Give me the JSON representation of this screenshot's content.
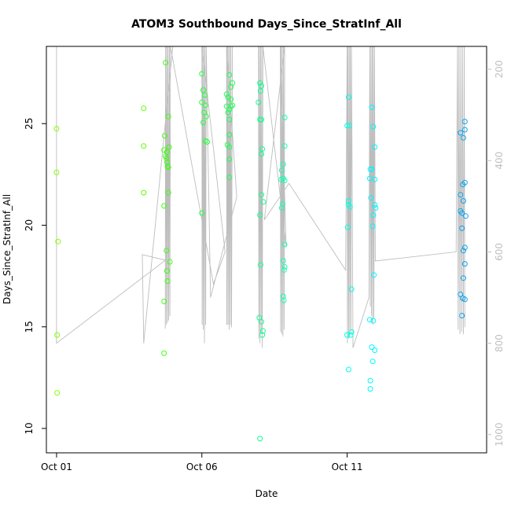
{
  "chart_data": {
    "type": "scatter",
    "title": "ATOM3 Southbound Days_Since_StratInf_All",
    "xlabel": "Date",
    "ylabel": "Days_Since_StratInf_All",
    "xlim": [
      -0.35,
      14.8
    ],
    "ylim": [
      8.8,
      28.8
    ],
    "y_ticks": [
      10,
      15,
      20,
      25
    ],
    "x_ticks": [
      {
        "value": 0,
        "label": "Oct 01"
      },
      {
        "value": 5,
        "label": "Oct 06"
      },
      {
        "value": 10,
        "label": "Oct 11"
      }
    ],
    "right_axis": {
      "ylim": [
        1040,
        150
      ],
      "ticks": [
        200,
        400,
        600,
        800,
        1000
      ],
      "color": "#bfbfbf"
    },
    "grid": false,
    "points": [
      {
        "x": 0.0,
        "y": 24.75,
        "color": "#7fff00"
      },
      {
        "x": 0.0,
        "y": 22.6,
        "color": "#7fff00"
      },
      {
        "x": 0.05,
        "y": 19.2,
        "color": "#7fff00"
      },
      {
        "x": 0.02,
        "y": 14.6,
        "color": "#7fff00"
      },
      {
        "x": 0.02,
        "y": 11.75,
        "color": "#7fff00"
      },
      {
        "x": 3.0,
        "y": 25.75,
        "color": "#5cff00"
      },
      {
        "x": 3.0,
        "y": 23.9,
        "color": "#5cff00"
      },
      {
        "x": 3.0,
        "y": 21.6,
        "color": "#5cff00"
      },
      {
        "x": 3.75,
        "y": 28.0,
        "color": "#3dff10"
      },
      {
        "x": 3.7,
        "y": 23.7,
        "color": "#3dff10"
      },
      {
        "x": 3.72,
        "y": 24.4,
        "color": "#3dff10"
      },
      {
        "x": 3.75,
        "y": 23.4,
        "color": "#3dff10"
      },
      {
        "x": 3.78,
        "y": 23.3,
        "color": "#3dff10"
      },
      {
        "x": 3.8,
        "y": 23.1,
        "color": "#3dff10"
      },
      {
        "x": 3.82,
        "y": 22.9,
        "color": "#3dff10"
      },
      {
        "x": 3.85,
        "y": 22.85,
        "color": "#3dff10"
      },
      {
        "x": 3.8,
        "y": 23.6,
        "color": "#3dff10"
      },
      {
        "x": 3.85,
        "y": 25.35,
        "color": "#3dff10"
      },
      {
        "x": 3.87,
        "y": 23.85,
        "color": "#3dff10"
      },
      {
        "x": 3.7,
        "y": 20.95,
        "color": "#3dff10"
      },
      {
        "x": 3.85,
        "y": 21.6,
        "color": "#3dff10"
      },
      {
        "x": 3.78,
        "y": 18.75,
        "color": "#3dff10"
      },
      {
        "x": 3.9,
        "y": 18.2,
        "color": "#3dff10"
      },
      {
        "x": 3.8,
        "y": 17.75,
        "color": "#3dff10"
      },
      {
        "x": 3.82,
        "y": 17.25,
        "color": "#3dff10"
      },
      {
        "x": 3.7,
        "y": 16.25,
        "color": "#3dff10"
      },
      {
        "x": 3.7,
        "y": 13.7,
        "color": "#3dff10"
      },
      {
        "x": 5.0,
        "y": 27.45,
        "color": "#25ff3a"
      },
      {
        "x": 5.05,
        "y": 26.65,
        "color": "#25ff3a"
      },
      {
        "x": 5.1,
        "y": 26.4,
        "color": "#25ff3a"
      },
      {
        "x": 5.0,
        "y": 26.05,
        "color": "#25ff3a"
      },
      {
        "x": 5.12,
        "y": 25.9,
        "color": "#25ff3a"
      },
      {
        "x": 5.08,
        "y": 25.55,
        "color": "#25ff3a"
      },
      {
        "x": 5.15,
        "y": 25.35,
        "color": "#25ff3a"
      },
      {
        "x": 5.05,
        "y": 25.05,
        "color": "#25ff3a"
      },
      {
        "x": 5.12,
        "y": 24.15,
        "color": "#25ff3a"
      },
      {
        "x": 5.18,
        "y": 24.1,
        "color": "#25ff3a"
      },
      {
        "x": 5.0,
        "y": 20.6,
        "color": "#25ff3a"
      },
      {
        "x": 5.95,
        "y": 27.4,
        "color": "#20ff55"
      },
      {
        "x": 6.0,
        "y": 26.8,
        "color": "#20ff55"
      },
      {
        "x": 6.05,
        "y": 27.0,
        "color": "#20ff55"
      },
      {
        "x": 5.85,
        "y": 26.45,
        "color": "#20ff55"
      },
      {
        "x": 5.9,
        "y": 26.3,
        "color": "#20ff55"
      },
      {
        "x": 6.0,
        "y": 26.2,
        "color": "#20ff55"
      },
      {
        "x": 5.85,
        "y": 25.85,
        "color": "#20ff55"
      },
      {
        "x": 6.0,
        "y": 25.85,
        "color": "#20ff55"
      },
      {
        "x": 5.95,
        "y": 25.7,
        "color": "#20ff55"
      },
      {
        "x": 6.05,
        "y": 25.9,
        "color": "#20ff55"
      },
      {
        "x": 5.9,
        "y": 25.55,
        "color": "#20ff55"
      },
      {
        "x": 5.95,
        "y": 25.2,
        "color": "#20ff55"
      },
      {
        "x": 5.95,
        "y": 24.45,
        "color": "#20ff55"
      },
      {
        "x": 5.88,
        "y": 23.95,
        "color": "#20ff55"
      },
      {
        "x": 5.95,
        "y": 23.85,
        "color": "#20ff55"
      },
      {
        "x": 5.95,
        "y": 23.25,
        "color": "#20ff55"
      },
      {
        "x": 5.95,
        "y": 22.35,
        "color": "#20ff55"
      },
      {
        "x": 7.0,
        "y": 27.0,
        "color": "#10ff90"
      },
      {
        "x": 7.05,
        "y": 26.85,
        "color": "#10ff90"
      },
      {
        "x": 7.02,
        "y": 26.6,
        "color": "#10ff90"
      },
      {
        "x": 6.95,
        "y": 26.05,
        "color": "#10ff90"
      },
      {
        "x": 7.0,
        "y": 25.2,
        "color": "#10ff90"
      },
      {
        "x": 7.05,
        "y": 25.2,
        "color": "#10ff90"
      },
      {
        "x": 7.08,
        "y": 23.75,
        "color": "#10ff90"
      },
      {
        "x": 7.05,
        "y": 23.5,
        "color": "#10ff90"
      },
      {
        "x": 7.05,
        "y": 21.5,
        "color": "#10ff90"
      },
      {
        "x": 7.12,
        "y": 21.15,
        "color": "#10ff90"
      },
      {
        "x": 7.0,
        "y": 20.5,
        "color": "#10ff90"
      },
      {
        "x": 7.02,
        "y": 18.05,
        "color": "#10ff90"
      },
      {
        "x": 6.98,
        "y": 15.45,
        "color": "#10ff90"
      },
      {
        "x": 7.05,
        "y": 15.25,
        "color": "#10ff90"
      },
      {
        "x": 7.1,
        "y": 14.8,
        "color": "#10ff90"
      },
      {
        "x": 7.08,
        "y": 14.6,
        "color": "#10ff90"
      },
      {
        "x": 7.0,
        "y": 9.5,
        "color": "#10ff90"
      },
      {
        "x": 7.85,
        "y": 25.3,
        "color": "#15ffb0"
      },
      {
        "x": 7.85,
        "y": 23.9,
        "color": "#15ffb0"
      },
      {
        "x": 7.8,
        "y": 23.0,
        "color": "#15ffb0"
      },
      {
        "x": 7.75,
        "y": 22.7,
        "color": "#15ffb0"
      },
      {
        "x": 7.8,
        "y": 22.3,
        "color": "#15ffb0"
      },
      {
        "x": 7.73,
        "y": 22.25,
        "color": "#15ffb0"
      },
      {
        "x": 7.85,
        "y": 22.2,
        "color": "#15ffb0"
      },
      {
        "x": 7.78,
        "y": 21.05,
        "color": "#15ffb0"
      },
      {
        "x": 7.75,
        "y": 20.85,
        "color": "#15ffb0"
      },
      {
        "x": 7.85,
        "y": 19.05,
        "color": "#15ffb0"
      },
      {
        "x": 7.8,
        "y": 18.25,
        "color": "#15ffb0"
      },
      {
        "x": 7.85,
        "y": 17.95,
        "color": "#15ffb0"
      },
      {
        "x": 7.83,
        "y": 17.8,
        "color": "#15ffb0"
      },
      {
        "x": 7.8,
        "y": 16.5,
        "color": "#15ffb0"
      },
      {
        "x": 7.82,
        "y": 16.3,
        "color": "#15ffb0"
      },
      {
        "x": 10.05,
        "y": 26.3,
        "color": "#00ffe6"
      },
      {
        "x": 10.0,
        "y": 24.9,
        "color": "#00ffe6"
      },
      {
        "x": 10.08,
        "y": 24.9,
        "color": "#00ffe6"
      },
      {
        "x": 10.05,
        "y": 21.2,
        "color": "#00ffe6"
      },
      {
        "x": 10.05,
        "y": 21.0,
        "color": "#00ffe6"
      },
      {
        "x": 10.1,
        "y": 20.9,
        "color": "#00ffe6"
      },
      {
        "x": 10.02,
        "y": 19.9,
        "color": "#00ffe6"
      },
      {
        "x": 10.15,
        "y": 16.85,
        "color": "#00ffe6"
      },
      {
        "x": 10.0,
        "y": 14.6,
        "color": "#00ffe6"
      },
      {
        "x": 10.12,
        "y": 14.6,
        "color": "#00ffe6"
      },
      {
        "x": 10.15,
        "y": 14.75,
        "color": "#00ffe6"
      },
      {
        "x": 10.05,
        "y": 12.9,
        "color": "#00ffe6"
      },
      {
        "x": 10.85,
        "y": 25.8,
        "color": "#00f6ff"
      },
      {
        "x": 10.9,
        "y": 24.85,
        "color": "#00f6ff"
      },
      {
        "x": 10.95,
        "y": 23.85,
        "color": "#00f6ff"
      },
      {
        "x": 10.8,
        "y": 22.75,
        "color": "#00f6ff"
      },
      {
        "x": 10.85,
        "y": 22.75,
        "color": "#00f6ff"
      },
      {
        "x": 10.78,
        "y": 22.3,
        "color": "#00f6ff"
      },
      {
        "x": 10.95,
        "y": 22.25,
        "color": "#00f6ff"
      },
      {
        "x": 10.82,
        "y": 21.35,
        "color": "#00f6ff"
      },
      {
        "x": 10.95,
        "y": 21.0,
        "color": "#00f6ff"
      },
      {
        "x": 10.98,
        "y": 20.85,
        "color": "#00f6ff"
      },
      {
        "x": 10.9,
        "y": 20.5,
        "color": "#00f6ff"
      },
      {
        "x": 10.88,
        "y": 19.95,
        "color": "#00f6ff"
      },
      {
        "x": 10.92,
        "y": 17.55,
        "color": "#00f6ff"
      },
      {
        "x": 10.78,
        "y": 15.35,
        "color": "#00f6ff"
      },
      {
        "x": 10.9,
        "y": 15.3,
        "color": "#00f6ff"
      },
      {
        "x": 10.85,
        "y": 14.0,
        "color": "#00f6ff"
      },
      {
        "x": 10.95,
        "y": 13.85,
        "color": "#00f6ff"
      },
      {
        "x": 10.88,
        "y": 13.3,
        "color": "#00f6ff"
      },
      {
        "x": 10.8,
        "y": 12.35,
        "color": "#00f6ff"
      },
      {
        "x": 10.8,
        "y": 11.95,
        "color": "#00f6ff"
      },
      {
        "x": 14.05,
        "y": 25.1,
        "color": "#0aa5ee"
      },
      {
        "x": 14.05,
        "y": 24.7,
        "color": "#0aa5ee"
      },
      {
        "x": 13.9,
        "y": 24.55,
        "color": "#0aa5ee"
      },
      {
        "x": 14.0,
        "y": 24.3,
        "color": "#0aa5ee"
      },
      {
        "x": 14.05,
        "y": 22.1,
        "color": "#0aa5ee"
      },
      {
        "x": 13.98,
        "y": 22.0,
        "color": "#0aa5ee"
      },
      {
        "x": 13.9,
        "y": 21.5,
        "color": "#0aa5ee"
      },
      {
        "x": 14.0,
        "y": 21.2,
        "color": "#0aa5ee"
      },
      {
        "x": 13.9,
        "y": 20.7,
        "color": "#0aa5ee"
      },
      {
        "x": 13.95,
        "y": 20.6,
        "color": "#0aa5ee"
      },
      {
        "x": 14.08,
        "y": 20.45,
        "color": "#0aa5ee"
      },
      {
        "x": 13.95,
        "y": 19.85,
        "color": "#0aa5ee"
      },
      {
        "x": 14.05,
        "y": 18.9,
        "color": "#0aa5ee"
      },
      {
        "x": 14.0,
        "y": 18.75,
        "color": "#0aa5ee"
      },
      {
        "x": 14.05,
        "y": 18.1,
        "color": "#0aa5ee"
      },
      {
        "x": 14.0,
        "y": 17.4,
        "color": "#0aa5ee"
      },
      {
        "x": 13.9,
        "y": 16.6,
        "color": "#0aa5ee"
      },
      {
        "x": 13.98,
        "y": 16.4,
        "color": "#0aa5ee"
      },
      {
        "x": 14.05,
        "y": 16.35,
        "color": "#0aa5ee"
      },
      {
        "x": 13.95,
        "y": 15.55,
        "color": "#0aa5ee"
      }
    ],
    "pressure_series": {
      "axis": "right",
      "color": "#bdbdbd",
      "points": [
        [
          0.0,
          150
        ],
        [
          0.0,
          800
        ],
        [
          3.75,
          618
        ],
        [
          2.95,
          606
        ],
        [
          3.0,
          800
        ],
        [
          4.0,
          150
        ],
        [
          4.5,
          150
        ],
        [
          3.75,
          150
        ],
        [
          3.74,
          768
        ],
        [
          3.76,
          150
        ],
        [
          3.78,
          760
        ],
        [
          3.8,
          150
        ],
        [
          3.82,
          755
        ],
        [
          3.84,
          150
        ],
        [
          3.86,
          750
        ],
        [
          3.88,
          150
        ],
        [
          3.9,
          740
        ],
        [
          3.92,
          150
        ],
        [
          5.4,
          670
        ],
        [
          5.8,
          600
        ],
        [
          5.0,
          150
        ],
        [
          5.01,
          760
        ],
        [
          5.03,
          150
        ],
        [
          5.05,
          770
        ],
        [
          5.07,
          150
        ],
        [
          5.09,
          800
        ],
        [
          5.11,
          150
        ],
        [
          5.13,
          760
        ],
        [
          5.15,
          150
        ],
        [
          5.3,
          700
        ],
        [
          6.2,
          480
        ],
        [
          5.85,
          150
        ],
        [
          5.86,
          760
        ],
        [
          5.88,
          150
        ],
        [
          5.9,
          760
        ],
        [
          5.92,
          150
        ],
        [
          5.94,
          770
        ],
        [
          5.96,
          150
        ],
        [
          5.98,
          760
        ],
        [
          6.0,
          150
        ],
        [
          6.02,
          765
        ],
        [
          6.05,
          150
        ],
        [
          6.85,
          150
        ],
        [
          6.9,
          150
        ],
        [
          6.95,
          150
        ],
        [
          6.96,
          790
        ],
        [
          6.98,
          150
        ],
        [
          7.0,
          800
        ],
        [
          7.02,
          150
        ],
        [
          7.04,
          780
        ],
        [
          7.06,
          150
        ],
        [
          7.08,
          810
        ],
        [
          7.1,
          150
        ],
        [
          7.9,
          590
        ],
        [
          7.7,
          150
        ],
        [
          7.71,
          775
        ],
        [
          7.73,
          150
        ],
        [
          7.75,
          780
        ],
        [
          7.77,
          150
        ],
        [
          7.79,
          785
        ],
        [
          7.81,
          150
        ],
        [
          7.83,
          770
        ],
        [
          7.85,
          150
        ],
        [
          7.15,
          530
        ],
        [
          8.0,
          450
        ],
        [
          9.95,
          640
        ],
        [
          10.0,
          150
        ],
        [
          10.01,
          800
        ],
        [
          10.03,
          150
        ],
        [
          10.05,
          790
        ],
        [
          10.07,
          150
        ],
        [
          10.09,
          770
        ],
        [
          10.11,
          150
        ],
        [
          10.13,
          780
        ],
        [
          10.15,
          150
        ],
        [
          10.2,
          810
        ],
        [
          10.75,
          700
        ],
        [
          10.78,
          150
        ],
        [
          10.8,
          720
        ],
        [
          10.82,
          150
        ],
        [
          10.84,
          740
        ],
        [
          10.86,
          150
        ],
        [
          10.88,
          760
        ],
        [
          10.9,
          150
        ],
        [
          10.92,
          745
        ],
        [
          10.94,
          150
        ],
        [
          10.97,
          620
        ],
        [
          13.75,
          600
        ],
        [
          13.8,
          150
        ],
        [
          13.82,
          770
        ],
        [
          13.85,
          150
        ],
        [
          13.88,
          780
        ],
        [
          13.91,
          150
        ],
        [
          13.94,
          775
        ],
        [
          13.97,
          150
        ],
        [
          14.0,
          780
        ],
        [
          14.03,
          150
        ],
        [
          14.05,
          765
        ]
      ]
    }
  }
}
